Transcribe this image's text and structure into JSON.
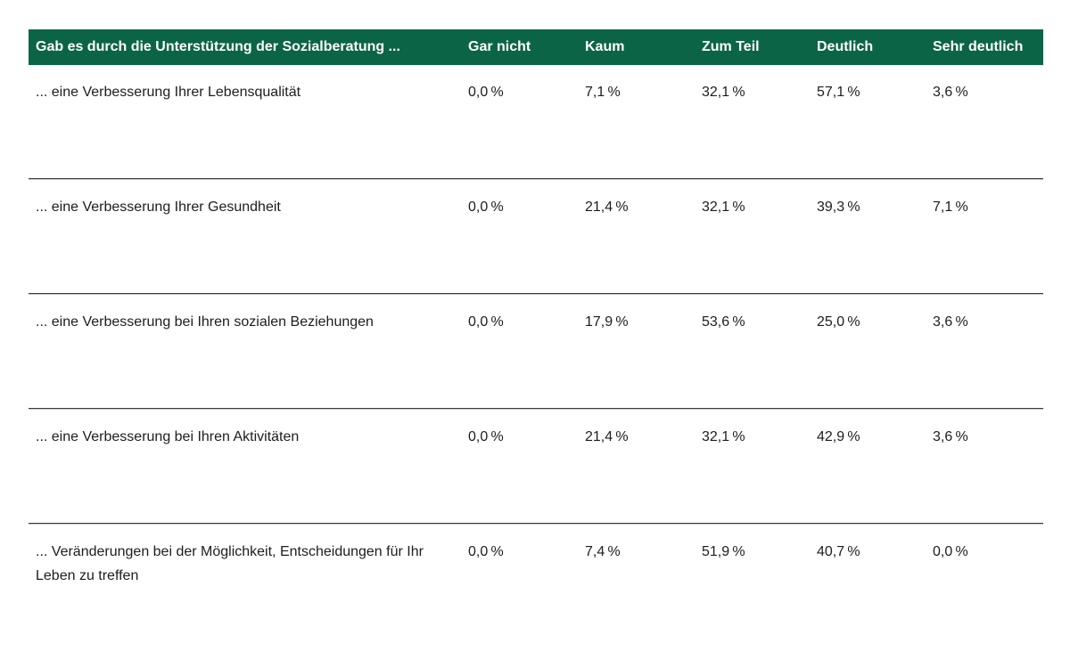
{
  "theme": {
    "header-bg": "#0c6447",
    "header-text": "#ffffff",
    "body-text": "#1d1d1b",
    "sep-dark": "#3c3c3b",
    "sep-light": "#c6c6c6",
    "page-bg": "#ffffff"
  },
  "table": {
    "question_header": "Gab es durch die Unterstützung der Sozialberatung ...",
    "columns": [
      "Gar nicht",
      "Kaum",
      "Zum Teil",
      "Deutlich",
      "Sehr deutlich"
    ],
    "rows": [
      {
        "label": "... eine Verbesserung Ihrer Lebensqualität",
        "values": [
          "0,0 %",
          "7,1 %",
          "32,1 %",
          "57,1 %",
          "3,6 %"
        ]
      },
      {
        "label": "... eine Verbesserung Ihrer Gesundheit",
        "values": [
          "0,0 %",
          "21,4 %",
          "32,1 %",
          "39,3 %",
          "7,1 %"
        ]
      },
      {
        "label": "... eine Verbesserung bei Ihren sozialen Beziehungen",
        "values": [
          "0,0 %",
          "17,9 %",
          "53,6 %",
          "25,0 %",
          "3,6 %"
        ]
      },
      {
        "label": "... eine Verbesserung bei Ihren Aktivitäten",
        "values": [
          "0,0 %",
          "21,4 %",
          "32,1 %",
          "42,9 %",
          "3,6 %"
        ]
      },
      {
        "label": "... Veränderungen bei der Möglichkeit, Entscheidungen für Ihr Leben zu treffen",
        "values": [
          "0,0 %",
          "7,4 %",
          "51,9 %",
          "40,7 %",
          "0,0 %"
        ]
      }
    ]
  },
  "chart_data": {
    "type": "table",
    "title": "Gab es durch die Unterstützung der Sozialberatung ...",
    "columns": [
      "Gar nicht",
      "Kaum",
      "Zum Teil",
      "Deutlich",
      "Sehr deutlich"
    ],
    "unit": "percent",
    "rows": [
      {
        "label": "... eine Verbesserung Ihrer Lebensqualität",
        "values_percent": [
          0.0,
          7.1,
          32.1,
          57.1,
          3.6
        ]
      },
      {
        "label": "... eine Verbesserung Ihrer Gesundheit",
        "values_percent": [
          0.0,
          21.4,
          32.1,
          39.3,
          7.1
        ]
      },
      {
        "label": "... eine Verbesserung bei Ihren sozialen Beziehungen",
        "values_percent": [
          0.0,
          17.9,
          53.6,
          25.0,
          3.6
        ]
      },
      {
        "label": "... eine Verbesserung bei Ihren Aktivitäten",
        "values_percent": [
          0.0,
          21.4,
          32.1,
          42.9,
          3.6
        ]
      },
      {
        "label": "... Veränderungen bei der Möglichkeit, Entscheidungen für Ihr Leben zu treffen",
        "values_percent": [
          0.0,
          7.4,
          51.9,
          40.7,
          0.0
        ]
      }
    ]
  }
}
